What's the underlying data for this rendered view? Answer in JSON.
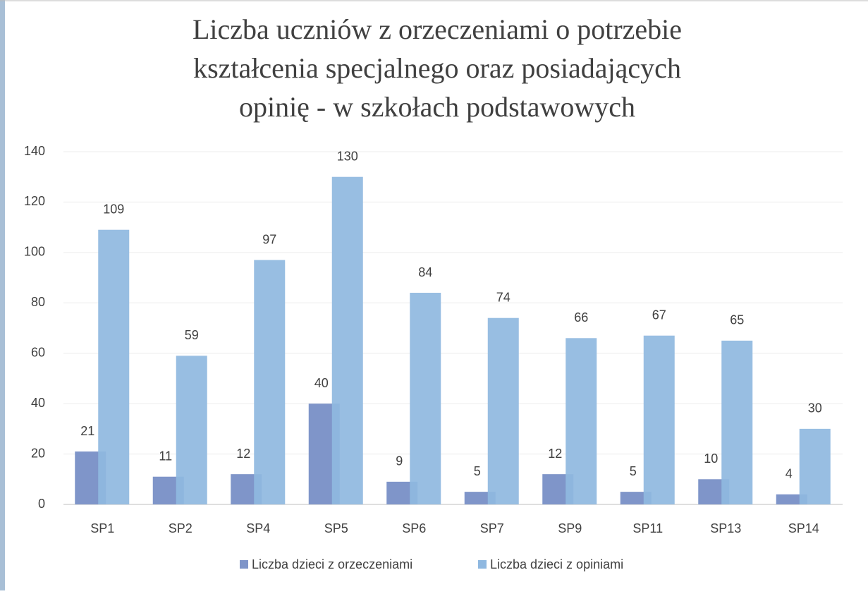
{
  "chart_data": {
    "type": "bar",
    "title": [
      "Liczba uczniów z orzeczeniami o potrzebie",
      "kształcenia specjalnego oraz posiadających",
      "opinię - w szkołach podstawowych"
    ],
    "categories": [
      "SP1",
      "SP2",
      "SP4",
      "SP5",
      "SP6",
      "SP7",
      "SP9",
      "SP11",
      "SP13",
      "SP14"
    ],
    "series": [
      {
        "name": "Liczba dzieci z orzeczeniami",
        "color": "#7f95c9",
        "values": [
          21,
          11,
          12,
          40,
          9,
          5,
          12,
          5,
          10,
          4
        ]
      },
      {
        "name": "Liczba dzieci z opiniami",
        "color": "#8fb8e0",
        "values": [
          109,
          59,
          97,
          130,
          84,
          74,
          66,
          67,
          65,
          30
        ]
      }
    ],
    "ylim": [
      0,
      140
    ],
    "yticks": [
      0,
      20,
      40,
      60,
      80,
      100,
      120,
      140
    ],
    "grid": true,
    "legend": "bottom"
  }
}
